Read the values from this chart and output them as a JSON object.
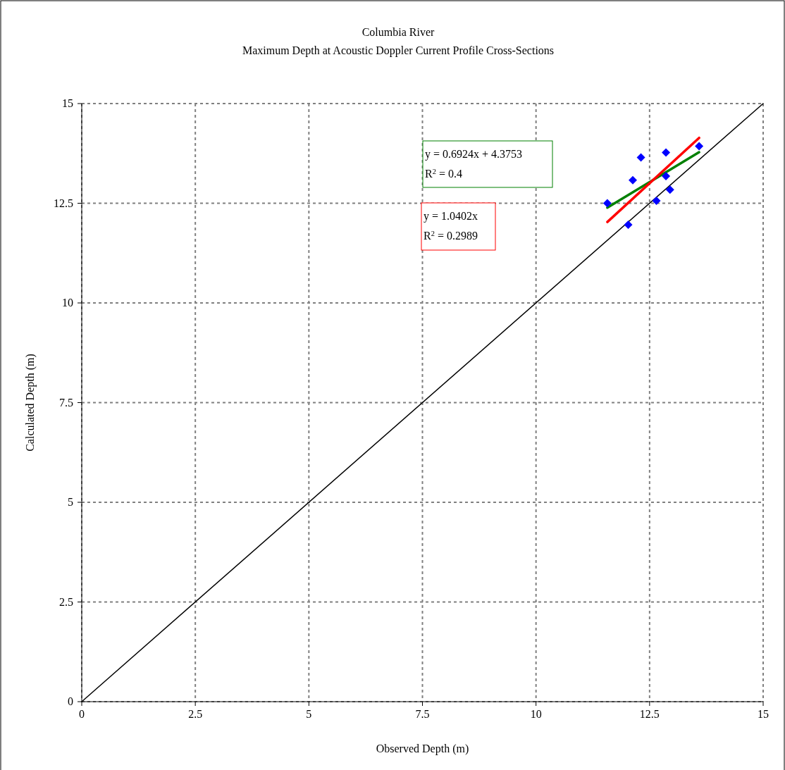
{
  "chart_data": {
    "type": "scatter",
    "title": "Columbia River",
    "subtitle": "Maximum Depth at Acoustic Doppler Current Profile Cross-Sections",
    "xlabel": "Observed Depth (m)",
    "ylabel": "Calculated Depth (m)",
    "xlim": [
      0,
      15
    ],
    "ylim": [
      0,
      15
    ],
    "xticks": [
      0,
      2.5,
      5,
      7.5,
      10,
      12.5,
      15
    ],
    "yticks": [
      0,
      2.5,
      5,
      7.5,
      10,
      12.5,
      15
    ],
    "grid": true,
    "series": [
      {
        "type": "scatter",
        "color": "#0000ff",
        "marker": "diamond",
        "x": [
          11.57,
          12.03,
          12.13,
          12.31,
          12.65,
          12.86,
          12.86,
          12.95,
          13.59
        ],
        "values": [
          12.5,
          11.96,
          13.08,
          13.65,
          12.56,
          13.77,
          13.18,
          12.84,
          13.93
        ]
      },
      {
        "type": "line",
        "color": "#008000",
        "x": [
          11.57,
          13.59
        ],
        "values": [
          12.39,
          13.78
        ]
      },
      {
        "type": "line",
        "color": "#ff0000",
        "x": [
          11.57,
          13.59
        ],
        "values": [
          12.03,
          14.14
        ]
      },
      {
        "type": "line",
        "color": "#000000",
        "x": [
          0,
          15
        ],
        "values": [
          0,
          15
        ]
      }
    ],
    "annotations": [
      "y = 0.6924x + 4.3753\nR$^{2}$ = 0.4",
      "y = 1.0402x\nR$^{2}$ = 0.2989"
    ]
  }
}
